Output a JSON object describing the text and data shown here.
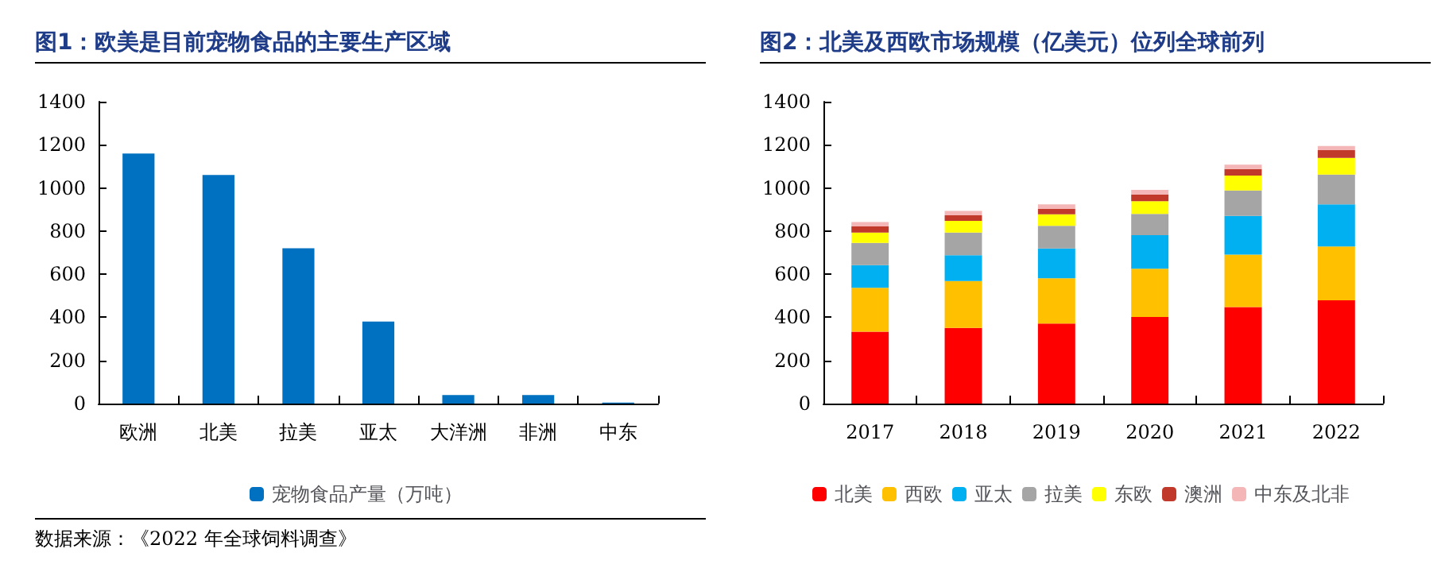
{
  "chart_data": [
    {
      "type": "bar",
      "title": "图1：欧美是目前宠物食品的主要生产区域",
      "categories": [
        "欧洲",
        "北美",
        "拉美",
        "亚太",
        "大洋洲",
        "非洲",
        "中东"
      ],
      "series": [
        {
          "name": "宠物食品产量（万吨）",
          "color": "#0070c0",
          "values": [
            1160,
            1060,
            720,
            380,
            40,
            40,
            5
          ]
        }
      ],
      "ylim": [
        0,
        1400
      ],
      "yticks": [
        0,
        200,
        400,
        600,
        800,
        1000,
        1200,
        1400
      ],
      "grid": false,
      "legend": "bottom",
      "annotations": [
        "数据来源：《2022 年全球饲料调查》"
      ]
    },
    {
      "type": "bar",
      "title": "图2：北美及西欧市场规模（亿美元）位列全球前列",
      "categories": [
        "2017",
        "2018",
        "2019",
        "2020",
        "2021",
        "2022"
      ],
      "stacked": true,
      "series": [
        {
          "name": "北美",
          "color": "#ff0000",
          "values": [
            333,
            351,
            371,
            402,
            448,
            479
          ]
        },
        {
          "name": "西欧",
          "color": "#ffc000",
          "values": [
            204,
            217,
            210,
            223,
            243,
            250
          ]
        },
        {
          "name": "亚太",
          "color": "#00b0f0",
          "values": [
            105,
            120,
            138,
            156,
            179,
            195
          ]
        },
        {
          "name": "拉美",
          "color": "#a5a5a5",
          "values": [
            103,
            105,
            105,
            99,
            118,
            138
          ]
        },
        {
          "name": "东欧",
          "color": "#ffff00",
          "values": [
            48,
            54,
            54,
            59,
            69,
            77
          ]
        },
        {
          "name": "澳洲",
          "color": "#c0392b",
          "values": [
            29,
            26,
            25,
            31,
            31,
            36
          ]
        },
        {
          "name": "中东及北非",
          "color": "#f4b6b6",
          "values": [
            20,
            20,
            21,
            21,
            20,
            20
          ]
        }
      ],
      "ylim": [
        0,
        1400
      ],
      "yticks": [
        0,
        200,
        400,
        600,
        800,
        1000,
        1200,
        1400
      ],
      "grid": false,
      "legend": "bottom"
    }
  ]
}
